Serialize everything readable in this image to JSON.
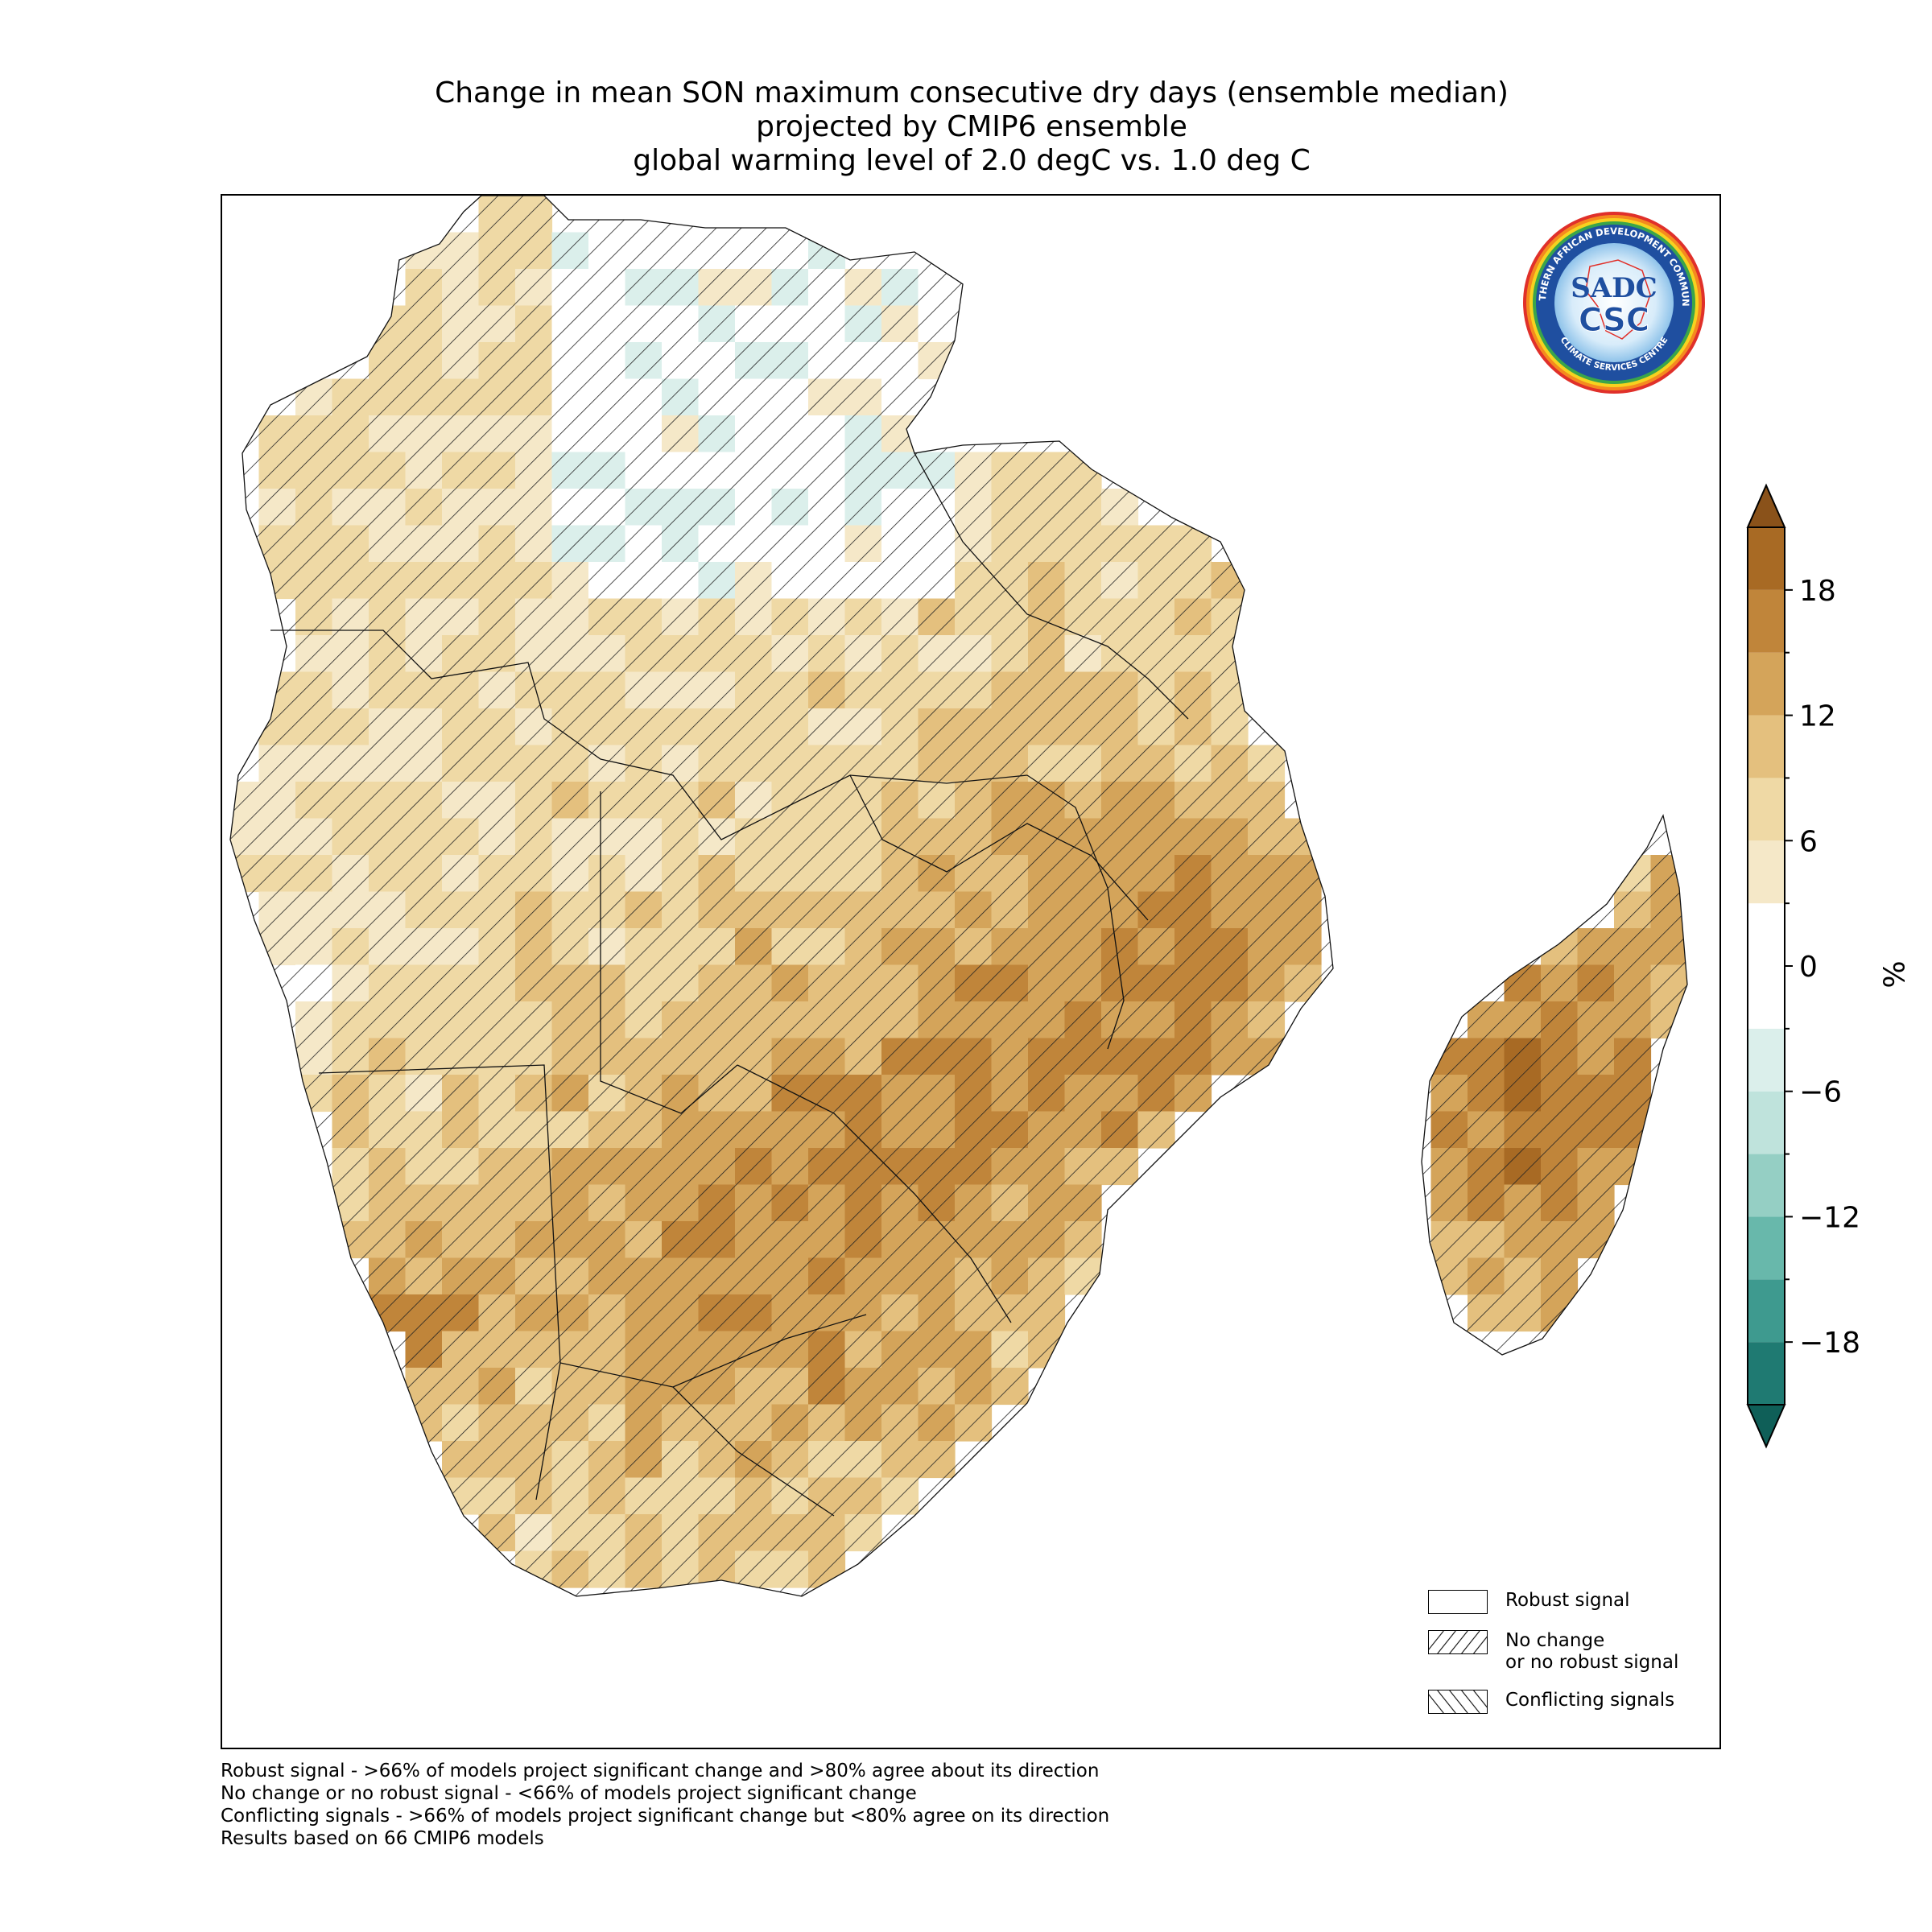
{
  "title": {
    "line1": "Change in mean SON maximum consecutive dry days (ensemble median)",
    "line2": "projected by CMIP6 ensemble",
    "line3": "global warming level of 2.0 degC vs. 1.0 deg C"
  },
  "logo": {
    "name": "SADC Climate Services Centre logo",
    "ring_text_top": "SOUTHERN AFRICAN DEVELOPMENT COMMUNITY",
    "ring_text_bottom": "CLIMATE SERVICES CENTRE",
    "center_top": "SADC",
    "center_bottom": "CSC"
  },
  "legend": {
    "items": [
      {
        "label_line1": "Robust signal",
        "label_line2": "",
        "pattern": "none"
      },
      {
        "label_line1": "No change",
        "label_line2": "or no robust signal",
        "pattern": "forward-hatch"
      },
      {
        "label_line1": "Conflicting signals",
        "label_line2": "",
        "pattern": "back-hatch"
      }
    ]
  },
  "colorbar": {
    "unit": "%",
    "ticks": [
      "18",
      "12",
      "6",
      "0",
      "−6",
      "−12",
      "−18"
    ],
    "tick_values": [
      18,
      12,
      6,
      0,
      -6,
      -12,
      -18
    ],
    "range": [
      -21,
      21
    ],
    "bin_edges": [
      -21,
      -18,
      -15,
      -12,
      -9,
      -6,
      -3,
      3,
      6,
      9,
      12,
      15,
      18,
      21
    ],
    "bin_colors": [
      "#1f7a72",
      "#3e9a8f",
      "#68b8ab",
      "#95cfc4",
      "#bfe3dc",
      "#dbefeb",
      "#ffffff",
      "#f5e8c8",
      "#efd9a5",
      "#e4c07e",
      "#d4a45a",
      "#c0853a",
      "#a86a24"
    ],
    "over_color": "#8a521a",
    "under_color": "#0f5f58"
  },
  "footnotes": [
    "Robust signal - >66% of models project significant change and >80% agree about its direction",
    "No change or no robust signal - <66% of models project significant change",
    "Conflicting signals - >66% of models project significant change but <80% agree on its direction",
    "Results based on 66 CMIP6 models"
  ],
  "colors": {
    "hatch": "#222222",
    "border": "#000000"
  }
}
